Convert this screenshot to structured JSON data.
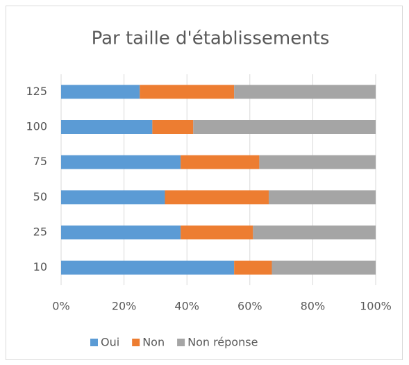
{
  "chart_data": {
    "type": "stacked_barh",
    "title": "Par taille d'établissements",
    "categories": [
      "125",
      "100",
      "75",
      "50",
      "25",
      "10"
    ],
    "series": [
      {
        "name": "Oui",
        "color": "#5b9bd5",
        "values": [
          25,
          29,
          38,
          33,
          38,
          55
        ]
      },
      {
        "name": "Non",
        "color": "#ed7d31",
        "values": [
          30,
          13,
          25,
          33,
          23,
          12
        ]
      },
      {
        "name": "Non réponse",
        "color": "#a5a5a5",
        "values": [
          45,
          58,
          37,
          34,
          39,
          33
        ]
      }
    ],
    "xlim": [
      0,
      100
    ],
    "xticks": [
      {
        "value": 0,
        "label": "0%"
      },
      {
        "value": 20,
        "label": "20%"
      },
      {
        "value": 40,
        "label": "40%"
      },
      {
        "value": 60,
        "label": "60%"
      },
      {
        "value": 80,
        "label": "80%"
      },
      {
        "value": 100,
        "label": "100%"
      }
    ],
    "grid": true,
    "legend": "bottom"
  }
}
